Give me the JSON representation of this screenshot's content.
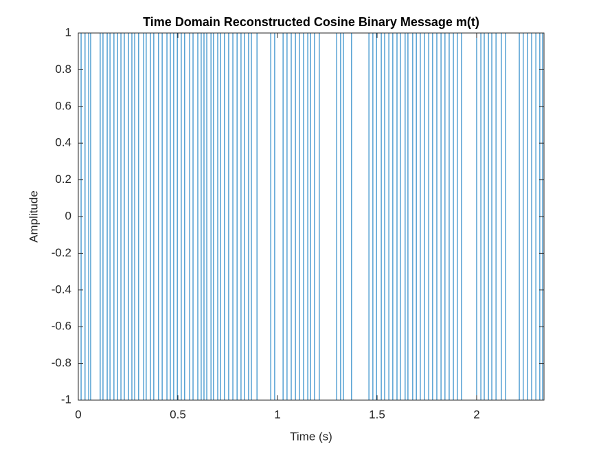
{
  "chart_data": {
    "type": "stairs",
    "title": "Time Domain Reconstructed Cosine Binary Message m(t)",
    "xlabel": "Time (s)",
    "ylabel": "Amplitude",
    "x": [
      0,
      0.014,
      0.034,
      0.052,
      0.062,
      0.11,
      0.124,
      0.145,
      0.159,
      0.179,
      0.197,
      0.214,
      0.231,
      0.252,
      0.269,
      0.283,
      0.303,
      0.328,
      0.341,
      0.362,
      0.379,
      0.403,
      0.421,
      0.445,
      0.462,
      0.479,
      0.497,
      0.517,
      0.534,
      0.559,
      0.576,
      0.6,
      0.617,
      0.631,
      0.645,
      0.666,
      0.679,
      0.7,
      0.714,
      0.734,
      0.755,
      0.776,
      0.797,
      0.817,
      0.834,
      0.855,
      0.869,
      0.897,
      0.966,
      0.986,
      1.028,
      1.048,
      1.069,
      1.09,
      1.11,
      1.131,
      1.152,
      1.166,
      1.186,
      1.21,
      1.297,
      1.317,
      1.331,
      1.372,
      1.459,
      1.479,
      1.497,
      1.521,
      1.538,
      1.559,
      1.579,
      1.6,
      1.617,
      1.641,
      1.655,
      1.679,
      1.697,
      1.717,
      1.738,
      1.759,
      1.779,
      1.8,
      1.821,
      1.841,
      1.862,
      1.883,
      1.903,
      1.924,
      2.0,
      2.021,
      2.038,
      2.059,
      2.076,
      2.097,
      2.124,
      2.145,
      2.214,
      2.234,
      2.255,
      2.276,
      2.297,
      2.317,
      2.331,
      2.338
    ],
    "values": [
      1,
      -1,
      1,
      -1,
      1,
      -1,
      1,
      -1,
      1,
      -1,
      1,
      -1,
      1,
      -1,
      1,
      -1,
      1,
      -1,
      1,
      -1,
      1,
      -1,
      1,
      -1,
      1,
      -1,
      1,
      -1,
      1,
      -1,
      1,
      -1,
      1,
      -1,
      1,
      -1,
      1,
      -1,
      1,
      -1,
      1,
      -1,
      1,
      -1,
      1,
      -1,
      1,
      -1,
      1,
      -1,
      1,
      -1,
      1,
      -1,
      1,
      -1,
      1,
      -1,
      1,
      -1,
      1,
      -1,
      1,
      -1,
      1,
      -1,
      1,
      -1,
      1,
      -1,
      1,
      -1,
      1,
      -1,
      1,
      -1,
      1,
      -1,
      1,
      -1,
      1,
      -1,
      1,
      -1,
      1,
      -1,
      1,
      -1,
      1,
      -1,
      1,
      -1,
      1,
      -1,
      1,
      -1,
      1,
      -1,
      1,
      -1,
      1,
      -1,
      1,
      1
    ],
    "color": "#0072bd",
    "xlim": [
      0,
      2.338
    ],
    "xticks": [
      0,
      0.5,
      1,
      1.5,
      2
    ],
    "ylim": [
      -1,
      1
    ],
    "yticks": [
      -1,
      -0.8,
      -0.6,
      -0.4,
      -0.2,
      0,
      0.2,
      0.4,
      0.6,
      0.8,
      1
    ],
    "grid": false
  }
}
